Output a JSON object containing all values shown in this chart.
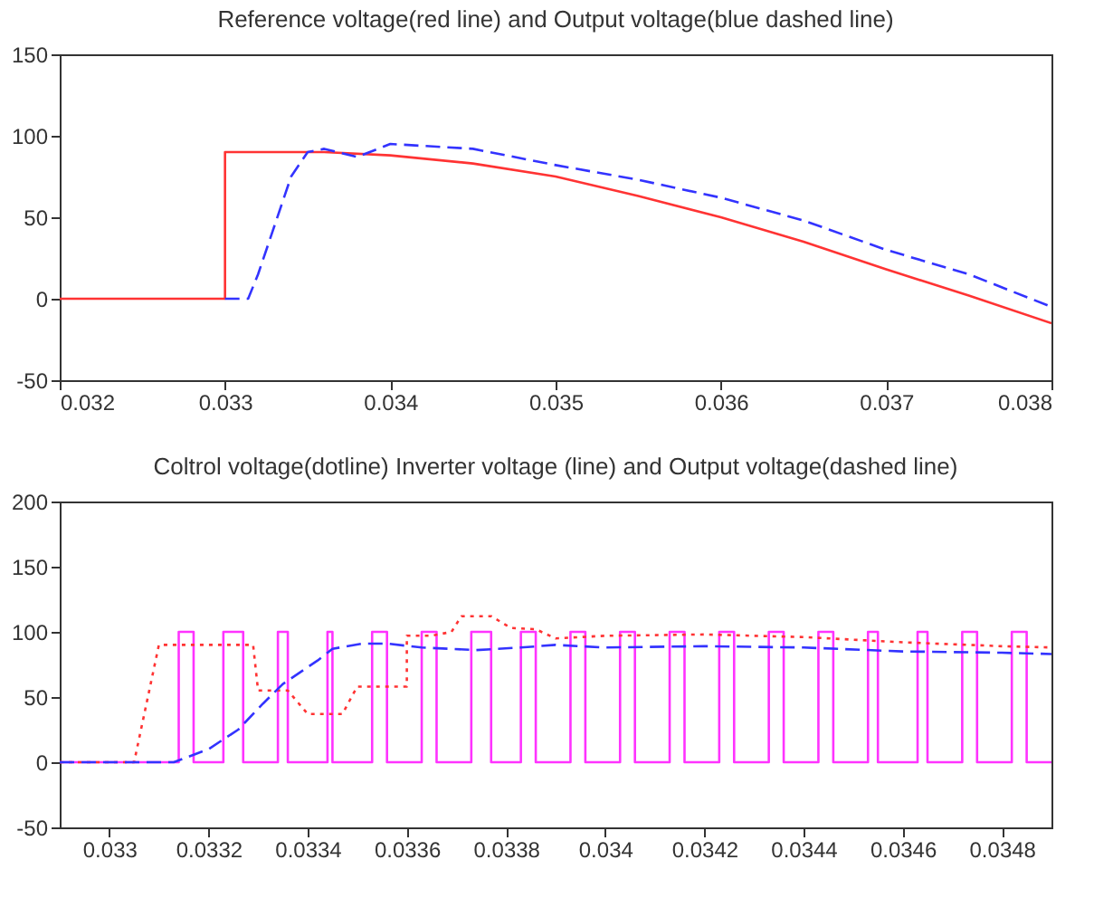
{
  "chart_data": [
    {
      "type": "line",
      "title": "Reference voltage(red line) and Output voltage(blue dashed line)",
      "xlim": [
        0.032,
        0.038
      ],
      "xticks": [
        0.032,
        0.033,
        0.034,
        0.035,
        0.036,
        0.037,
        0.038
      ],
      "ylim": [
        -50,
        150
      ],
      "yticks": [
        -50,
        0,
        50,
        100,
        150
      ],
      "grid": false,
      "series": [
        {
          "color": "#ff3333",
          "line_style": "solid",
          "x": [
            0.032,
            0.033,
            0.033,
            0.0336,
            0.034,
            0.0345,
            0.035,
            0.0355,
            0.036,
            0.0365,
            0.037,
            0.0375,
            0.038
          ],
          "values": [
            0,
            0,
            90,
            90,
            88,
            83,
            75,
            63,
            50,
            35,
            18,
            2,
            -15
          ]
        },
        {
          "color": "#3333ff",
          "line_style": "dashed",
          "x": [
            0.033,
            0.03314,
            0.0332,
            0.0333,
            0.0334,
            0.0335,
            0.0336,
            0.0338,
            0.034,
            0.0345,
            0.035,
            0.0355,
            0.036,
            0.0365,
            0.037,
            0.0375,
            0.038
          ],
          "values": [
            0,
            0,
            15,
            45,
            75,
            90,
            92,
            87,
            95,
            92,
            82,
            73,
            62,
            48,
            30,
            15,
            -5
          ]
        }
      ]
    },
    {
      "type": "line",
      "title": "Coltrol voltage(dotline) Inverter voltage (line) and Output voltage(dashed line)",
      "xlim": [
        0.0329,
        0.0349
      ],
      "xticks": [
        0.033,
        0.0332,
        0.0334,
        0.0336,
        0.0338,
        0.034,
        0.0342,
        0.0344,
        0.0346,
        0.0348
      ],
      "ylim": [
        -50,
        200
      ],
      "yticks": [
        -50,
        0,
        50,
        100,
        150,
        200
      ],
      "grid": false,
      "series": [
        {
          "color": "#ff33ff",
          "line_style": "solid",
          "x": [
            0.0329,
            0.03314,
            0.03314,
            0.03317,
            0.03317,
            0.03323,
            0.03323,
            0.03327,
            0.03327,
            0.03334,
            0.03334,
            0.03336,
            0.03336,
            0.03344,
            0.03344,
            0.03345,
            0.03345,
            0.03353,
            0.03353,
            0.03356,
            0.03356,
            0.03363,
            0.03363,
            0.03366,
            0.03366,
            0.03373,
            0.03373,
            0.03377,
            0.03377,
            0.03383,
            0.03383,
            0.03386,
            0.03386,
            0.03393,
            0.03393,
            0.03396,
            0.03396,
            0.03403,
            0.03403,
            0.03406,
            0.03406,
            0.03413,
            0.03413,
            0.03416,
            0.03416,
            0.03423,
            0.03423,
            0.03426,
            0.03426,
            0.03433,
            0.03433,
            0.03436,
            0.03436,
            0.03443,
            0.03443,
            0.03446,
            0.03446,
            0.03453,
            0.03453,
            0.03455,
            0.03455,
            0.03463,
            0.03463,
            0.03465,
            0.03465,
            0.03472,
            0.03472,
            0.03475,
            0.03475,
            0.03482,
            0.03482,
            0.03485,
            0.03485,
            0.0349
          ],
          "values": [
            0,
            0,
            100,
            100,
            0,
            0,
            100,
            100,
            0,
            0,
            100,
            100,
            0,
            0,
            100,
            100,
            0,
            0,
            100,
            100,
            0,
            0,
            100,
            100,
            0,
            0,
            100,
            100,
            0,
            0,
            100,
            100,
            0,
            0,
            100,
            100,
            0,
            0,
            100,
            100,
            0,
            0,
            100,
            100,
            0,
            0,
            100,
            100,
            0,
            0,
            100,
            100,
            0,
            0,
            100,
            100,
            0,
            0,
            100,
            100,
            0,
            0,
            100,
            100,
            0,
            0,
            100,
            100,
            0,
            0,
            100,
            100,
            0,
            0
          ]
        },
        {
          "color": "#ff3333",
          "line_style": "dotted",
          "x": [
            0.0329,
            0.03305,
            0.0331,
            0.03329,
            0.0333,
            0.03336,
            0.0334,
            0.03347,
            0.0335,
            0.0336,
            0.0336,
            0.03365,
            0.03369,
            0.03371,
            0.03377,
            0.03381,
            0.03386,
            0.0339,
            0.034,
            0.0342,
            0.0344,
            0.0346,
            0.0348,
            0.0349
          ],
          "values": [
            0,
            0,
            90,
            90,
            55,
            55,
            37,
            37,
            58,
            58,
            97,
            97,
            100,
            112,
            112,
            103,
            102,
            95,
            97,
            98,
            96,
            92,
            89,
            88
          ]
        },
        {
          "color": "#3333ff",
          "line_style": "dashed",
          "x": [
            0.0329,
            0.03313,
            0.0332,
            0.03326,
            0.03331,
            0.03335,
            0.03342,
            0.03345,
            0.03351,
            0.03356,
            0.03363,
            0.03374,
            0.03383,
            0.0339,
            0.034,
            0.0342,
            0.0344,
            0.0346,
            0.0348,
            0.0349
          ],
          "values": [
            0,
            0,
            10,
            25,
            45,
            60,
            78,
            87,
            91,
            91,
            88,
            86,
            88,
            90,
            88,
            89,
            88,
            85,
            84,
            83
          ]
        }
      ]
    }
  ]
}
